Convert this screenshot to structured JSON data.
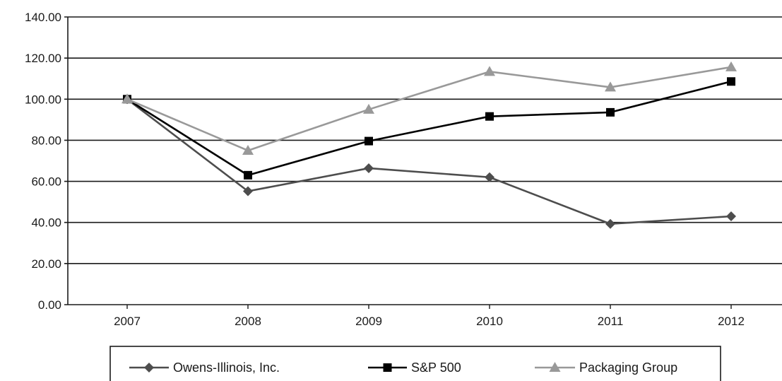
{
  "chart_data": {
    "type": "line",
    "title": "",
    "xlabel": "",
    "ylabel": "",
    "categories": [
      "2007",
      "2008",
      "2009",
      "2010",
      "2011",
      "2012"
    ],
    "ylim": [
      0,
      140
    ],
    "y_ticks": [
      "0.00",
      "20.00",
      "40.00",
      "60.00",
      "80.00",
      "100.00",
      "120.00",
      "140.00"
    ],
    "grid": "horizontal",
    "legend_position": "bottom",
    "series": [
      {
        "name": "Owens-Illinois, Inc.",
        "values": [
          100,
          55.2,
          66.4,
          62.0,
          39.3,
          43.0
        ],
        "color": "#4d4d4d",
        "marker": "diamond"
      },
      {
        "name": "S&P 500",
        "values": [
          100,
          63.0,
          79.6,
          91.6,
          93.6,
          108.6
        ],
        "color": "#000000",
        "marker": "square"
      },
      {
        "name": "Packaging Group",
        "values": [
          100,
          75.0,
          95.0,
          113.4,
          105.8,
          115.6
        ],
        "color": "#999999",
        "marker": "triangle"
      }
    ]
  }
}
